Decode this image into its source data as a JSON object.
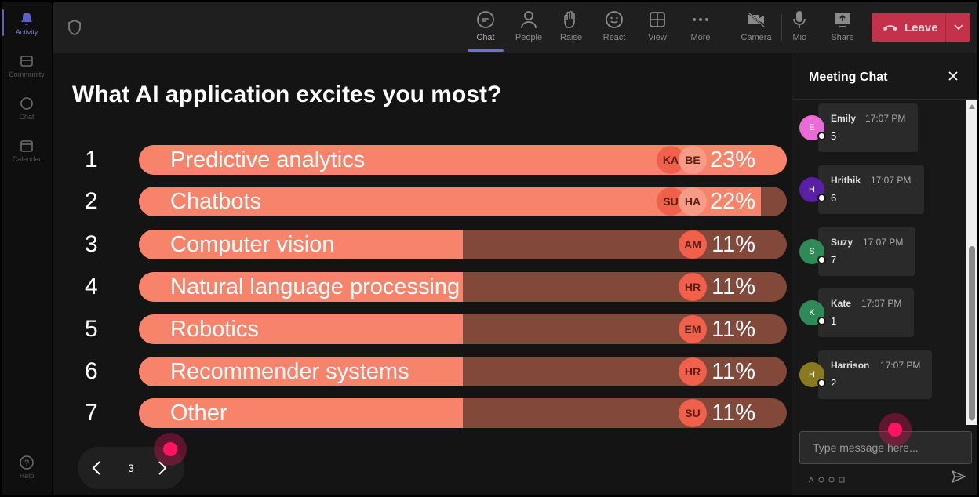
{
  "rail": {
    "items": [
      {
        "label": "Activity",
        "icon": "bell-icon"
      },
      {
        "label": "Community",
        "icon": "community-icon"
      },
      {
        "label": "Chat",
        "icon": "chat-icon"
      },
      {
        "label": "Calendar",
        "icon": "calendar-icon"
      },
      {
        "label": "Help",
        "icon": "help-icon"
      }
    ]
  },
  "toolbar": {
    "buttons": [
      {
        "label": "Chat",
        "icon": "chat-icon"
      },
      {
        "label": "People",
        "icon": "people-icon"
      },
      {
        "label": "Raise",
        "icon": "hand-icon"
      },
      {
        "label": "React",
        "icon": "emoji-icon"
      },
      {
        "label": "View",
        "icon": "grid-icon"
      },
      {
        "label": "More",
        "icon": "more-icon"
      },
      {
        "label": "Camera",
        "icon": "camera-off-icon"
      },
      {
        "label": "Mic",
        "icon": "mic-icon"
      },
      {
        "label": "Share",
        "icon": "share-icon"
      }
    ],
    "leave_label": "Leave"
  },
  "poll": {
    "question": "What AI application excites you most?",
    "options": [
      {
        "num": "1",
        "label": "Predictive analytics",
        "pct": "23%",
        "fill": 1.0,
        "voters": [
          "KA",
          "BE"
        ]
      },
      {
        "num": "2",
        "label": "Chatbots",
        "pct": "22%",
        "fill": 0.96,
        "voters": [
          "SU",
          "HA"
        ]
      },
      {
        "num": "3",
        "label": "Computer vision",
        "pct": "11%",
        "fill": 0.5,
        "voters": [
          "AM"
        ]
      },
      {
        "num": "4",
        "label": "Natural language processing",
        "pct": "11%",
        "fill": 0.5,
        "voters": [
          "HR"
        ]
      },
      {
        "num": "5",
        "label": "Robotics",
        "pct": "11%",
        "fill": 0.5,
        "voters": [
          "EM"
        ]
      },
      {
        "num": "6",
        "label": "Recommender systems",
        "pct": "11%",
        "fill": 0.5,
        "voters": [
          "HR"
        ]
      },
      {
        "num": "7",
        "label": "Other",
        "pct": "11%",
        "fill": 0.5,
        "voters": [
          "SU"
        ]
      }
    ],
    "page": "3"
  },
  "chat": {
    "title": "Meeting Chat",
    "messages": [
      {
        "initial": "E",
        "name": "Emily",
        "time": "17:07 PM",
        "text": "5",
        "color": "#e96bd6"
      },
      {
        "initial": "H",
        "name": "Hrithik",
        "time": "17:07 PM",
        "text": "6",
        "color": "#5a1fa6"
      },
      {
        "initial": "S",
        "name": "Suzy",
        "time": "17:07 PM",
        "text": "7",
        "color": "#2e8b57"
      },
      {
        "initial": "K",
        "name": "Kate",
        "time": "17:07 PM",
        "text": "1",
        "color": "#2e8b57"
      },
      {
        "initial": "H",
        "name": "Harrison",
        "time": "17:07 PM",
        "text": "2",
        "color": "#8a7a1f"
      }
    ],
    "placeholder": "Type message here..."
  },
  "colors": {
    "bar_fill": "#f7846a",
    "bar_track": "#82483a",
    "leave": "#c4314b",
    "accent": "#6264a7"
  }
}
